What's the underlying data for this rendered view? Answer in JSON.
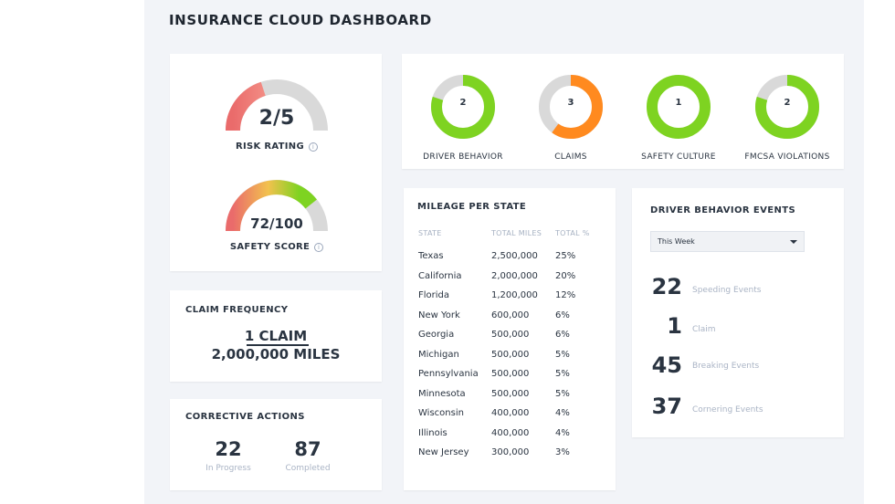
{
  "title": "INSURANCE CLOUD DASHBOARD",
  "risk": {
    "value": "2/5",
    "label": "RISK RATING",
    "fraction": 0.4
  },
  "safety": {
    "value": "72/100",
    "label": "SAFETY SCORE",
    "fraction": 0.72
  },
  "donuts": [
    {
      "num": "2",
      "label": "DRIVER BEHAVIOR",
      "color": "#7ed321",
      "fraction": 0.8
    },
    {
      "num": "3",
      "label": "CLAIMS",
      "color": "#ff8a1f",
      "fraction": 0.6
    },
    {
      "num": "1",
      "label": "SAFETY CULTURE",
      "color": "#7ed321",
      "fraction": 1.0
    },
    {
      "num": "2",
      "label": "FMCSA VIOLATIONS",
      "color": "#7ed321",
      "fraction": 0.8
    }
  ],
  "claim_frequency": {
    "title": "CLAIM FREQUENCY",
    "top": "1 CLAIM",
    "bottom": "2,000,000 MILES"
  },
  "corrective": {
    "title": "CORRECTIVE ACTIONS",
    "in_progress": "22",
    "in_progress_label": "In Progress",
    "completed": "87",
    "completed_label": "Completed"
  },
  "mileage": {
    "title": "MILEAGE PER STATE",
    "headers": [
      "STATE",
      "TOTAL MILES",
      "TOTAL %"
    ],
    "rows": [
      [
        "Texas",
        "2,500,000",
        "25%"
      ],
      [
        "California",
        "2,000,000",
        "20%"
      ],
      [
        "Florida",
        "1,200,000",
        "12%"
      ],
      [
        "New York",
        "600,000",
        "6%"
      ],
      [
        "Georgia",
        "500,000",
        "6%"
      ],
      [
        "Michigan",
        "500,000",
        "5%"
      ],
      [
        "Pennsylvania",
        "500,000",
        "5%"
      ],
      [
        "Minnesota",
        "500,000",
        "5%"
      ],
      [
        "Wisconsin",
        "400,000",
        "4%"
      ],
      [
        "Illinois",
        "400,000",
        "4%"
      ],
      [
        "New Jersey",
        "300,000",
        "3%"
      ]
    ]
  },
  "events": {
    "title": "DRIVER BEHAVIOR EVENTS",
    "period": "This Week",
    "items": [
      {
        "num": "22",
        "label": "Speeding Events"
      },
      {
        "num": "1",
        "label": "Claim"
      },
      {
        "num": "45",
        "label": "Breaking Events"
      },
      {
        "num": "37",
        "label": "Cornering Events"
      }
    ]
  },
  "colors": {
    "green": "#7ed321",
    "orange": "#ff8a1f",
    "red": "#ea6b6b",
    "track": "#d9d9d9"
  }
}
